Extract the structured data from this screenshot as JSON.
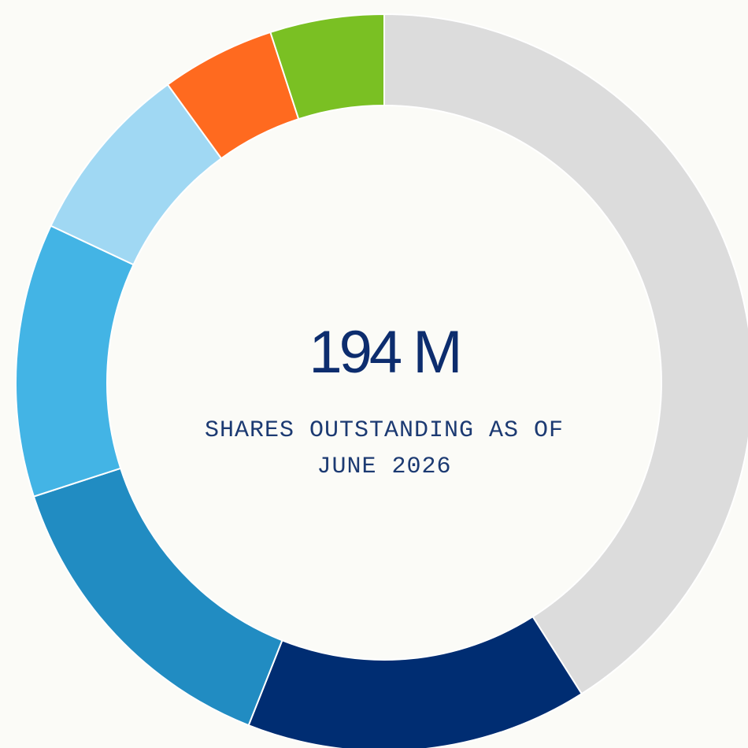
{
  "chart_data": {
    "type": "donut",
    "title": "194 M",
    "subtitle": "SHARES OUTSTANDING AS OF JUNE 2026",
    "values": [
      41,
      15,
      14,
      12,
      8,
      5,
      5
    ],
    "colors": [
      "#dcdcdc",
      "#002d72",
      "#218cc2",
      "#43b4e5",
      "#a0d8f3",
      "#ff6a1f",
      "#7ac023"
    ]
  }
}
